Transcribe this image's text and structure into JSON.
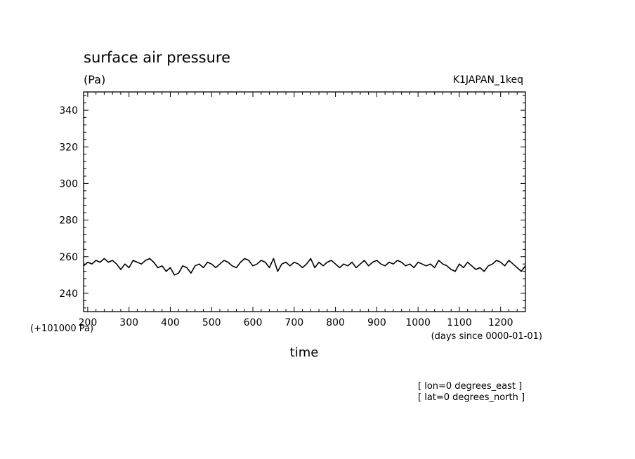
{
  "chart_data": {
    "type": "line",
    "title": "surface air pressure",
    "units": "(Pa)",
    "dataset_label": "K1JAPAN_1keq",
    "xlabel": "time",
    "x_units": "(days since 0000-01-01)",
    "y_offset_label": "(+101000 Pa)",
    "footnotes": [
      "[ lon=0 degrees_east ]",
      "[ lat=0 degrees_north ]"
    ],
    "xlim": [
      190,
      1260
    ],
    "ylim": [
      230,
      350
    ],
    "x_ticks": [
      200,
      300,
      400,
      500,
      600,
      700,
      800,
      900,
      1000,
      1100,
      1200
    ],
    "x_tick_labels": [
      "200",
      "300",
      "400",
      "500",
      "600",
      "700",
      "800",
      "900",
      "1000",
      "1100",
      "1200"
    ],
    "y_ticks": [
      240,
      260,
      280,
      300,
      320,
      340
    ],
    "y_tick_labels": [
      "240",
      "260",
      "280",
      "300",
      "320",
      "340"
    ],
    "grid": false,
    "series": [
      {
        "color": "#000000",
        "x": [
          190,
          200,
          210,
          220,
          230,
          240,
          250,
          260,
          270,
          280,
          290,
          300,
          310,
          320,
          330,
          340,
          350,
          360,
          370,
          380,
          390,
          400,
          410,
          420,
          430,
          440,
          450,
          460,
          470,
          480,
          490,
          500,
          510,
          520,
          530,
          540,
          550,
          560,
          570,
          580,
          590,
          600,
          610,
          620,
          630,
          640,
          650,
          660,
          670,
          680,
          690,
          700,
          710,
          720,
          730,
          740,
          750,
          760,
          770,
          780,
          790,
          800,
          810,
          820,
          830,
          840,
          850,
          860,
          870,
          880,
          890,
          900,
          910,
          920,
          930,
          940,
          950,
          960,
          970,
          980,
          990,
          1000,
          1010,
          1020,
          1030,
          1040,
          1050,
          1060,
          1070,
          1080,
          1090,
          1100,
          1110,
          1120,
          1130,
          1140,
          1150,
          1160,
          1170,
          1180,
          1190,
          1200,
          1210,
          1220,
          1230,
          1240,
          1250,
          1260
        ],
        "y": [
          255,
          257,
          256,
          258,
          257,
          259,
          257,
          258,
          256,
          253,
          256,
          254,
          258,
          257,
          256,
          258,
          259,
          257,
          254,
          255,
          252,
          254,
          250,
          251,
          255,
          254,
          251,
          255,
          256,
          254,
          257,
          256,
          254,
          256,
          258,
          257,
          255,
          254,
          257,
          259,
          258,
          255,
          256,
          258,
          257,
          254,
          259,
          252,
          256,
          257,
          255,
          257,
          256,
          254,
          256,
          259,
          254,
          257,
          255,
          257,
          258,
          256,
          254,
          256,
          255,
          257,
          254,
          256,
          258,
          255,
          257,
          258,
          256,
          255,
          257,
          256,
          258,
          257,
          255,
          256,
          254,
          257,
          256,
          255,
          256,
          254,
          258,
          256,
          255,
          253,
          252,
          256,
          254,
          257,
          255,
          253,
          254,
          252,
          255,
          256,
          258,
          257,
          255,
          258,
          256,
          254,
          252,
          255
        ]
      }
    ]
  }
}
